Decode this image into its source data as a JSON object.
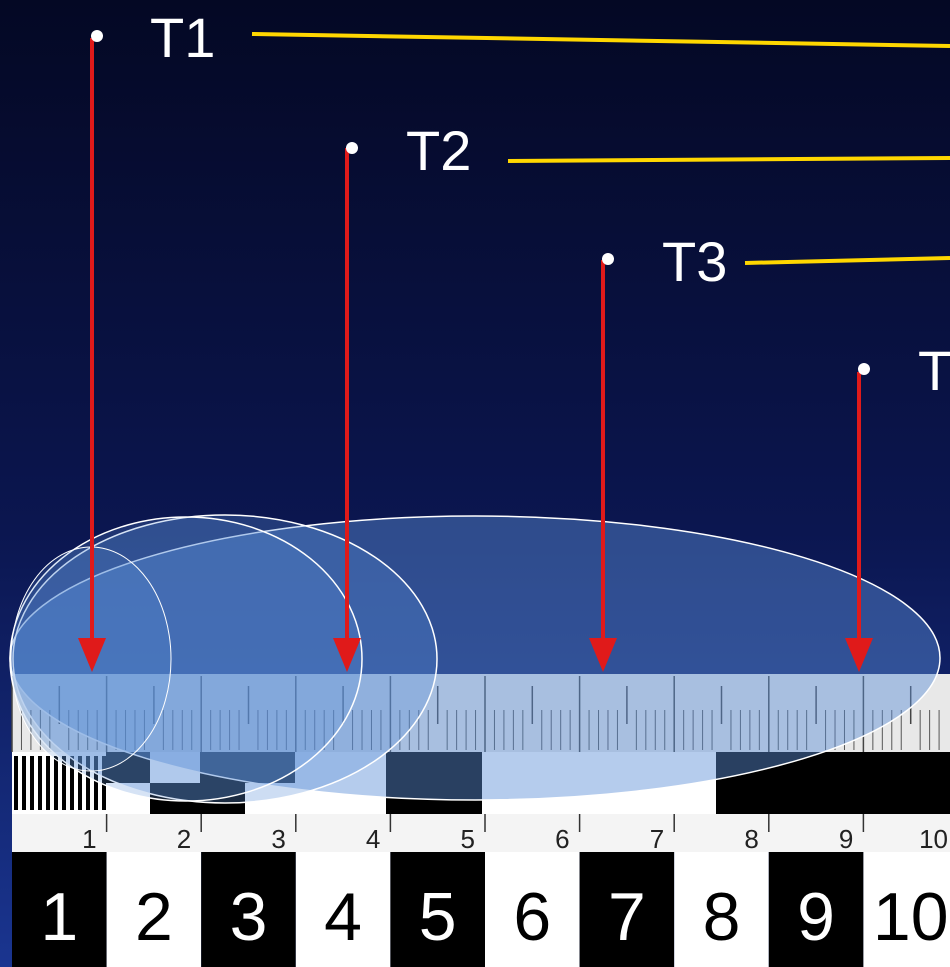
{
  "labels": [
    {
      "id": "t1",
      "text": "T1"
    },
    {
      "id": "t2",
      "text": "T2"
    },
    {
      "id": "t3",
      "text": "T3"
    },
    {
      "id": "t4",
      "text": "T"
    }
  ],
  "ruler_small_numbers": [
    "1",
    "2",
    "3",
    "4",
    "5",
    "6",
    "7",
    "8",
    "9",
    "10"
  ],
  "ruler_big_numbers": [
    "1",
    "2",
    "3",
    "4",
    "5",
    "6",
    "7",
    "8",
    "9",
    "10"
  ],
  "colors": {
    "background_top": "#050a2e",
    "background_bottom": "#142a80",
    "label_text": "#ffffff",
    "leader_line": "#ffd700",
    "arrow": "#e02020",
    "ellipse_fill": "#5a8fd6",
    "ellipse_stroke": "#ffffff"
  }
}
